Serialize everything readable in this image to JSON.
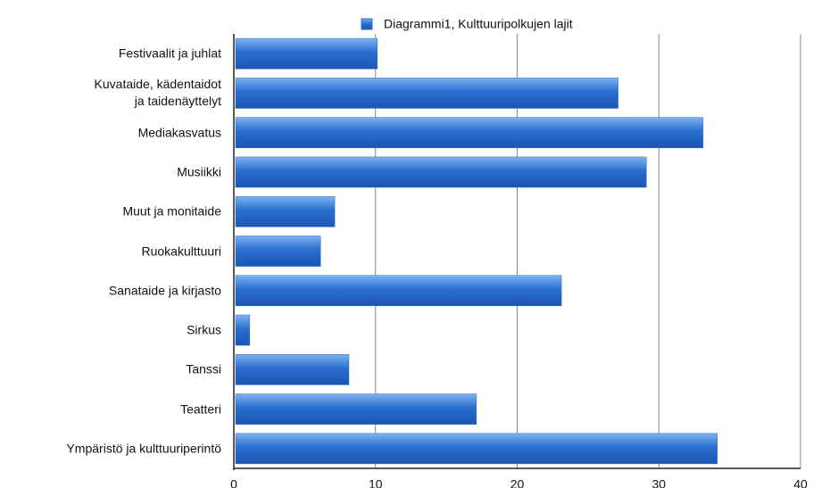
{
  "chart_data": {
    "type": "hbar",
    "categories": [
      "Festivaalit ja juhlat",
      "Kuvataide, kädentaidot\nja taidenäyttelyt",
      "Mediakasvatus",
      "Musiikki",
      "Muut ja monitaide",
      "Ruokakulttuuri",
      "Sanataide ja kirjasto",
      "Sirkus",
      "Tanssi",
      "Teatteri",
      "Ympäristö ja kulttuuriperintö"
    ],
    "series": [
      {
        "name": "Diagrammi1, Kulttuuripolkujen lajit",
        "color": "#2a6fd0",
        "values": [
          10,
          27,
          33,
          29,
          7,
          6,
          23,
          1,
          8,
          17,
          34
        ]
      }
    ],
    "xlim": [
      0,
      40
    ],
    "xticks": [
      0,
      10,
      20,
      30,
      40
    ],
    "grid": true,
    "legend": "top"
  }
}
